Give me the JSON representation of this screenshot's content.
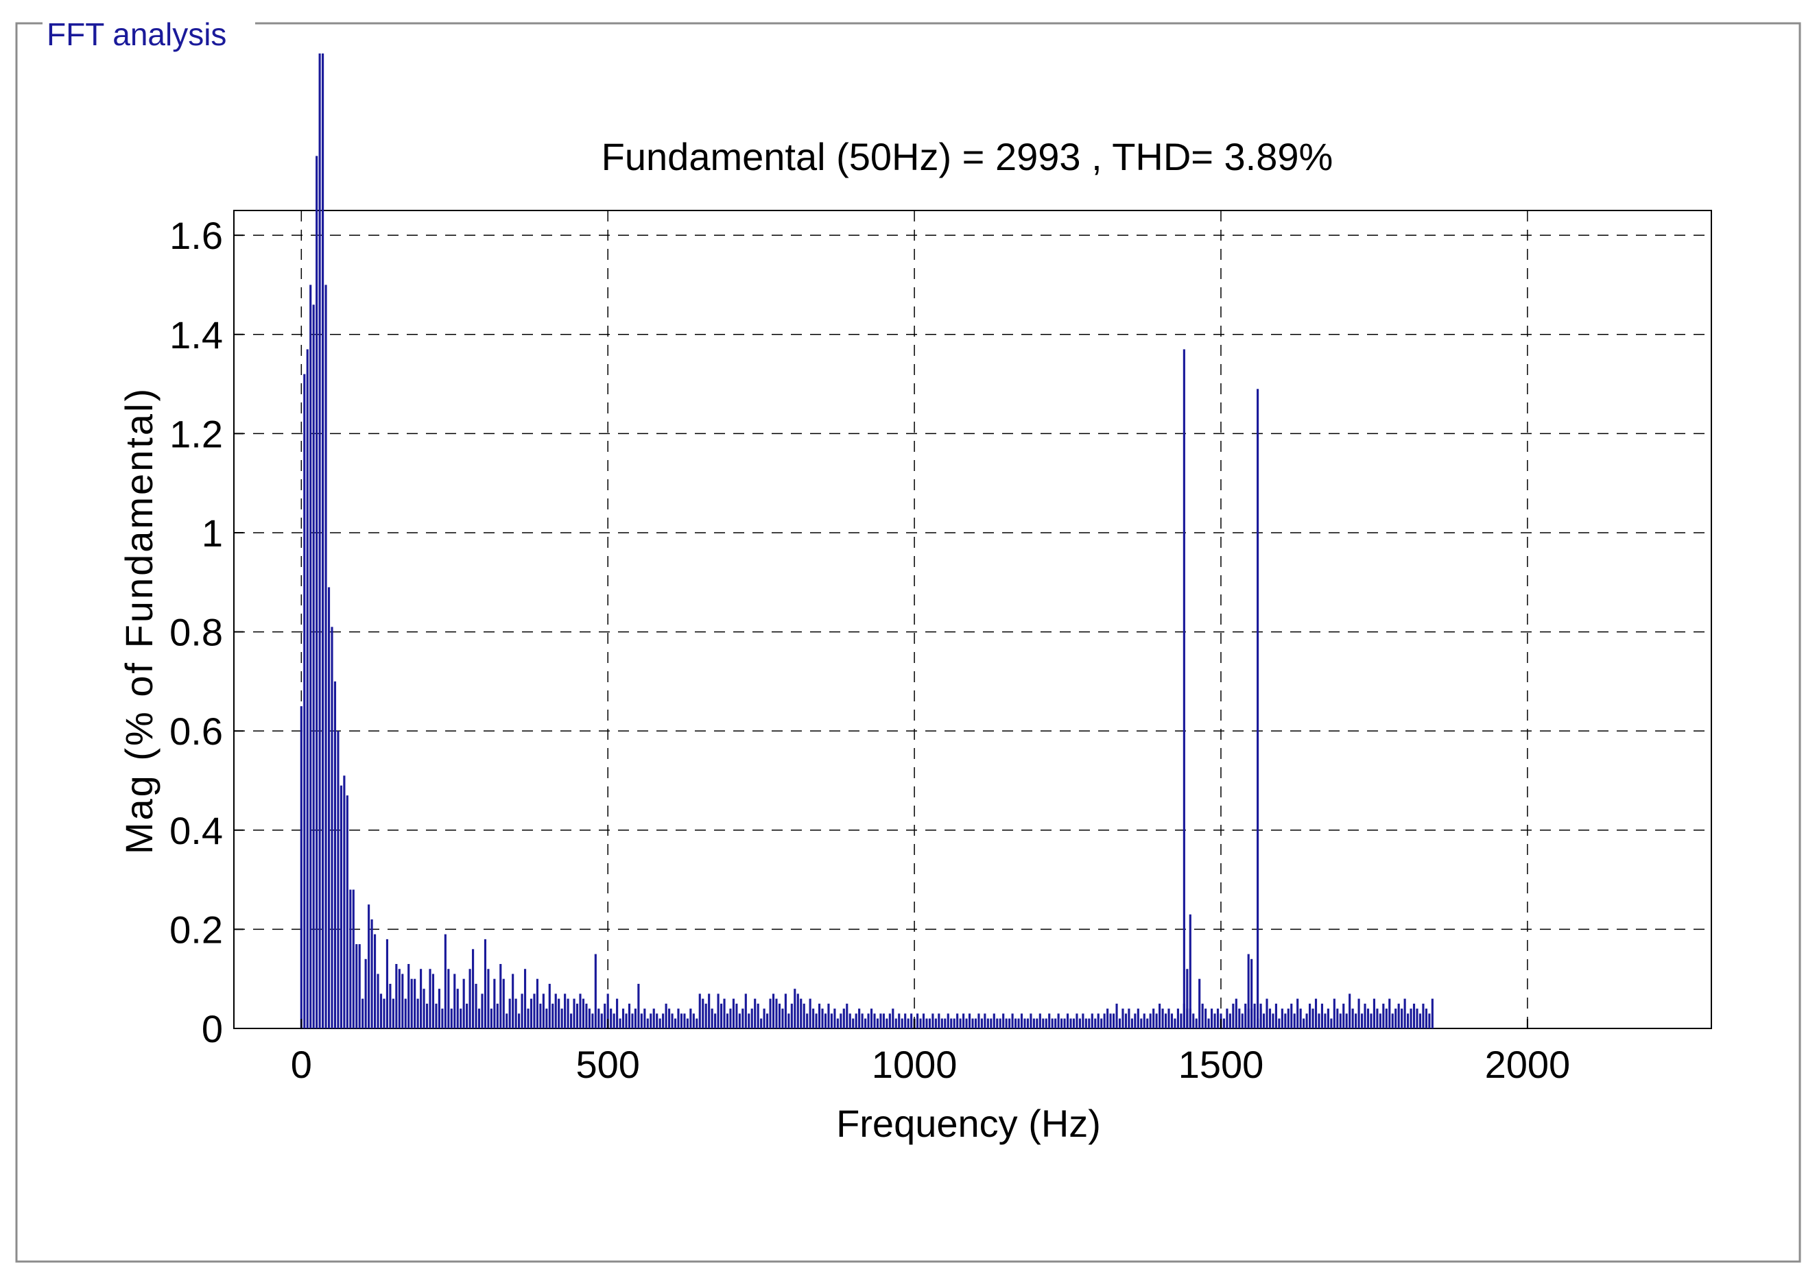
{
  "panel": {
    "title": "FFT analysis",
    "title_color": "#1a1a9a",
    "frame_color": "#8c8c8c"
  },
  "chart_data": {
    "type": "bar",
    "title": "Fundamental (50Hz) = 2993 , THD= 3.89%",
    "xlabel": "Frequency (Hz)",
    "ylabel": "Mag (% of Fundamental)",
    "xlim": [
      -110,
      2300
    ],
    "ylim": [
      0,
      1.65
    ],
    "xticks": [
      0,
      500,
      1000,
      1500,
      2000
    ],
    "yticks": [
      0,
      0.2,
      0.4,
      0.6,
      0.8,
      1,
      1.2,
      1.4,
      1.6
    ],
    "ytick_labels": [
      "0",
      "0.2",
      "0.4",
      "0.6",
      "0.8",
      "1",
      "1.2",
      "1.4",
      "1.6"
    ],
    "grid": true,
    "bar_color": "#1a1a9a",
    "bin_hz": 5,
    "start_hz": 0,
    "values": [
      0.65,
      1.32,
      1.37,
      1.5,
      1.46,
      1.76,
      2.0,
      2.0,
      1.5,
      0.89,
      0.81,
      0.7,
      0.6,
      0.49,
      0.51,
      0.47,
      0.28,
      0.28,
      0.17,
      0.17,
      0.06,
      0.14,
      0.25,
      0.22,
      0.19,
      0.11,
      0.07,
      0.06,
      0.18,
      0.09,
      0.06,
      0.13,
      0.12,
      0.11,
      0.06,
      0.13,
      0.1,
      0.1,
      0.06,
      0.12,
      0.08,
      0.05,
      0.12,
      0.11,
      0.05,
      0.08,
      0.04,
      0.19,
      0.12,
      0.04,
      0.11,
      0.08,
      0.04,
      0.1,
      0.05,
      0.12,
      0.16,
      0.09,
      0.04,
      0.07,
      0.18,
      0.12,
      0.04,
      0.1,
      0.05,
      0.13,
      0.1,
      0.03,
      0.06,
      0.11,
      0.06,
      0.03,
      0.07,
      0.12,
      0.04,
      0.06,
      0.07,
      0.1,
      0.05,
      0.07,
      0.04,
      0.09,
      0.05,
      0.07,
      0.06,
      0.04,
      0.07,
      0.06,
      0.03,
      0.06,
      0.05,
      0.07,
      0.06,
      0.05,
      0.04,
      0.03,
      0.15,
      0.04,
      0.03,
      0.05,
      0.07,
      0.04,
      0.03,
      0.06,
      0.02,
      0.04,
      0.03,
      0.05,
      0.03,
      0.04,
      0.09,
      0.03,
      0.04,
      0.02,
      0.03,
      0.04,
      0.03,
      0.02,
      0.03,
      0.05,
      0.04,
      0.03,
      0.02,
      0.04,
      0.03,
      0.03,
      0.02,
      0.04,
      0.03,
      0.02,
      0.07,
      0.06,
      0.05,
      0.07,
      0.04,
      0.03,
      0.07,
      0.05,
      0.06,
      0.03,
      0.04,
      0.06,
      0.05,
      0.03,
      0.04,
      0.07,
      0.03,
      0.04,
      0.06,
      0.05,
      0.02,
      0.04,
      0.03,
      0.06,
      0.07,
      0.06,
      0.05,
      0.04,
      0.07,
      0.03,
      0.05,
      0.08,
      0.07,
      0.06,
      0.05,
      0.03,
      0.06,
      0.04,
      0.03,
      0.05,
      0.04,
      0.03,
      0.05,
      0.03,
      0.04,
      0.02,
      0.03,
      0.04,
      0.05,
      0.03,
      0.02,
      0.03,
      0.04,
      0.03,
      0.02,
      0.03,
      0.04,
      0.03,
      0.02,
      0.03,
      0.03,
      0.02,
      0.03,
      0.04,
      0.02,
      0.03,
      0.02,
      0.03,
      0.02,
      0.03,
      0.02,
      0.03,
      0.02,
      0.03,
      0.02,
      0.02,
      0.03,
      0.02,
      0.03,
      0.02,
      0.02,
      0.03,
      0.02,
      0.02,
      0.03,
      0.02,
      0.03,
      0.02,
      0.03,
      0.02,
      0.02,
      0.03,
      0.02,
      0.03,
      0.02,
      0.02,
      0.03,
      0.02,
      0.02,
      0.03,
      0.02,
      0.02,
      0.03,
      0.02,
      0.02,
      0.03,
      0.02,
      0.02,
      0.03,
      0.02,
      0.02,
      0.03,
      0.02,
      0.02,
      0.03,
      0.02,
      0.02,
      0.03,
      0.02,
      0.02,
      0.03,
      0.02,
      0.02,
      0.03,
      0.02,
      0.03,
      0.02,
      0.02,
      0.03,
      0.02,
      0.03,
      0.02,
      0.03,
      0.04,
      0.03,
      0.03,
      0.05,
      0.02,
      0.04,
      0.03,
      0.04,
      0.02,
      0.03,
      0.04,
      0.02,
      0.03,
      0.02,
      0.03,
      0.04,
      0.03,
      0.05,
      0.04,
      0.03,
      0.04,
      0.03,
      0.02,
      0.04,
      0.03,
      0.05,
      0.04,
      0.04,
      0.03,
      0.02,
      0.1,
      0.05,
      0.04,
      0.02,
      0.04,
      0.03,
      0.04,
      0.03,
      0.02,
      0.04,
      0.03,
      0.05,
      0.06,
      0.04,
      0.03,
      0.05,
      0.04,
      0.04,
      0.05,
      0.02,
      0.04,
      0.03,
      0.06,
      0.04,
      0.03,
      0.05,
      0.02,
      0.04,
      0.03,
      0.04,
      0.05,
      0.03,
      0.06,
      0.04,
      0.02,
      0.03,
      0.05,
      0.04,
      0.06,
      0.03,
      0.05,
      0.03,
      0.04,
      0.02,
      0.06,
      0.04,
      0.03,
      0.05,
      0.03,
      0.07,
      0.04,
      0.03,
      0.06,
      0.03,
      0.05,
      0.04,
      0.03,
      0.06,
      0.04,
      0.03,
      0.05,
      0.04,
      0.06,
      0.03,
      0.04,
      0.05,
      0.04,
      0.06,
      0.03,
      0.04,
      0.05,
      0.04,
      0.03,
      0.05,
      0.04,
      0.03,
      0.06
    ],
    "spikes": [
      {
        "x": 1440,
        "value": 1.37
      },
      {
        "x": 1445,
        "value": 0.12
      },
      {
        "x": 1450,
        "value": 0.23
      },
      {
        "x": 1545,
        "value": 0.15
      },
      {
        "x": 1550,
        "value": 0.14
      },
      {
        "x": 1560,
        "value": 1.29
      },
      {
        "x": 1565,
        "value": 0.05
      }
    ]
  }
}
